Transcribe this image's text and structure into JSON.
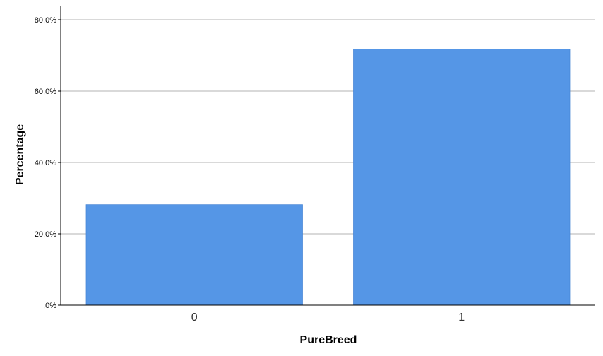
{
  "chart_data": {
    "type": "bar",
    "categories": [
      "0",
      "1"
    ],
    "values": [
      28.2,
      71.8
    ],
    "xlabel": "PureBreed",
    "ylabel": "Percentage",
    "ylim": [
      0,
      80
    ],
    "yticks": [
      0,
      20,
      40,
      60,
      80
    ],
    "ytick_labels": [
      ",0%",
      "20,0%",
      "40,0%",
      "60,0%",
      "80,0%"
    ],
    "grid": true,
    "colors": {
      "bar": "#5596e6",
      "bar_edge": "#3f7fd1",
      "grid": "#b3b3b3",
      "axis": "#000000"
    }
  }
}
